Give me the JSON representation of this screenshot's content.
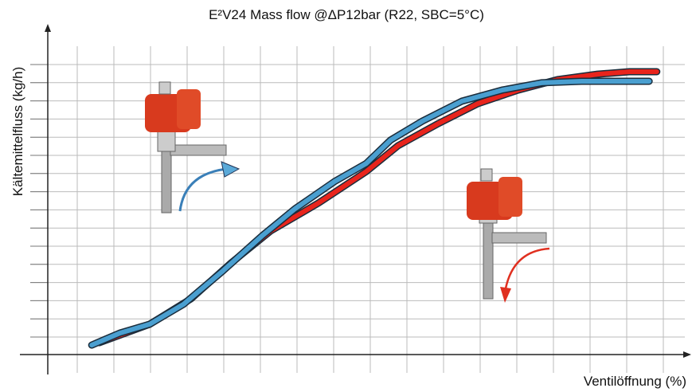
{
  "chart_data": {
    "type": "line",
    "title": "E²V24 Mass flow @ΔP12bar (R22, SBC=5°C)",
    "x_label": "Ventilöffnung (%)",
    "y_label": "Kältemittelfluss (kg/h)",
    "xlim": [
      0,
      100
    ],
    "ylim": [
      0,
      100
    ],
    "grid": true,
    "series": [
      {
        "color": "#4a9fd0",
        "x": [
          6.9,
          11.3,
          16,
          21.3,
          27.5,
          33.8,
          38.8,
          45,
          50,
          53.8,
          58.8,
          65,
          71.3,
          77.5,
          83.8,
          90,
          94.4
        ],
        "values": [
          3.1,
          7,
          9.9,
          16.4,
          27.3,
          39,
          47.5,
          56.4,
          62.3,
          69.9,
          76.1,
          82.6,
          86.2,
          88.6,
          89.1,
          89.1,
          89.1
        ]
      },
      {
        "color": "#e8241c",
        "x": [
          8.1,
          16,
          22.5,
          28.8,
          35,
          42.5,
          50,
          55,
          61.3,
          67.5,
          73.8,
          80,
          86.3,
          91.3,
          95.6
        ],
        "values": [
          3.9,
          9.9,
          18.2,
          29.9,
          40.3,
          49.4,
          59.7,
          68.1,
          75.3,
          81.8,
          86.2,
          89.6,
          91.4,
          92.2,
          92.2
        ]
      }
    ]
  }
}
